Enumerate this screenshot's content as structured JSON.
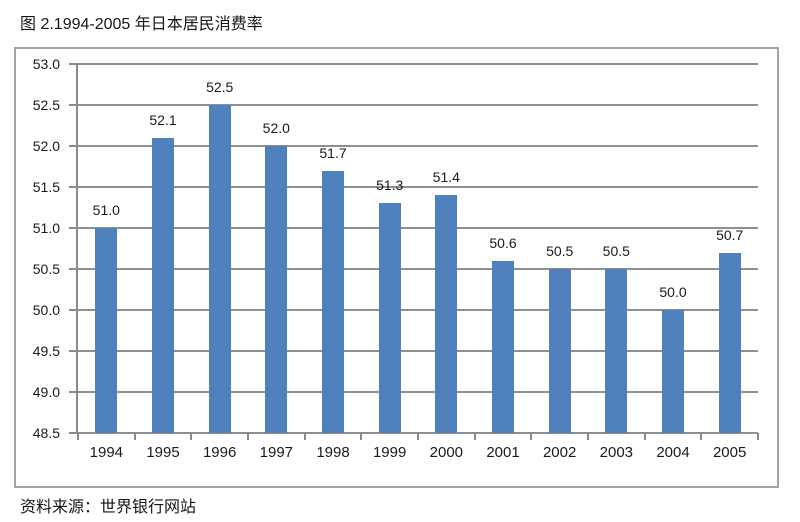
{
  "figure": {
    "title": "图 2.1994-2005 年日本居民消费率",
    "source": "资料来源：世界银行网站"
  },
  "chart_data": {
    "type": "bar",
    "title": "图 2.1994-2005 年日本居民消费率",
    "categories": [
      "1994",
      "1995",
      "1996",
      "1997",
      "1998",
      "1999",
      "2000",
      "2001",
      "2002",
      "2003",
      "2004",
      "2005"
    ],
    "values": [
      51.0,
      52.1,
      52.5,
      52.0,
      51.7,
      51.3,
      51.4,
      50.6,
      50.5,
      50.5,
      50.0,
      50.7
    ],
    "xlabel": "",
    "ylabel": "",
    "ylim": [
      48.5,
      53.0
    ],
    "ytick_step": 0.5,
    "grid": true,
    "legend": false,
    "data_labels": true,
    "source_note": "资料来源：世界银行网站",
    "colors": {
      "bar": "#4F81BD",
      "grid": "#8f8f8f",
      "axis": "#8a8a8a",
      "frame": "#a3a3a3",
      "text": "#1a1a1a"
    }
  }
}
